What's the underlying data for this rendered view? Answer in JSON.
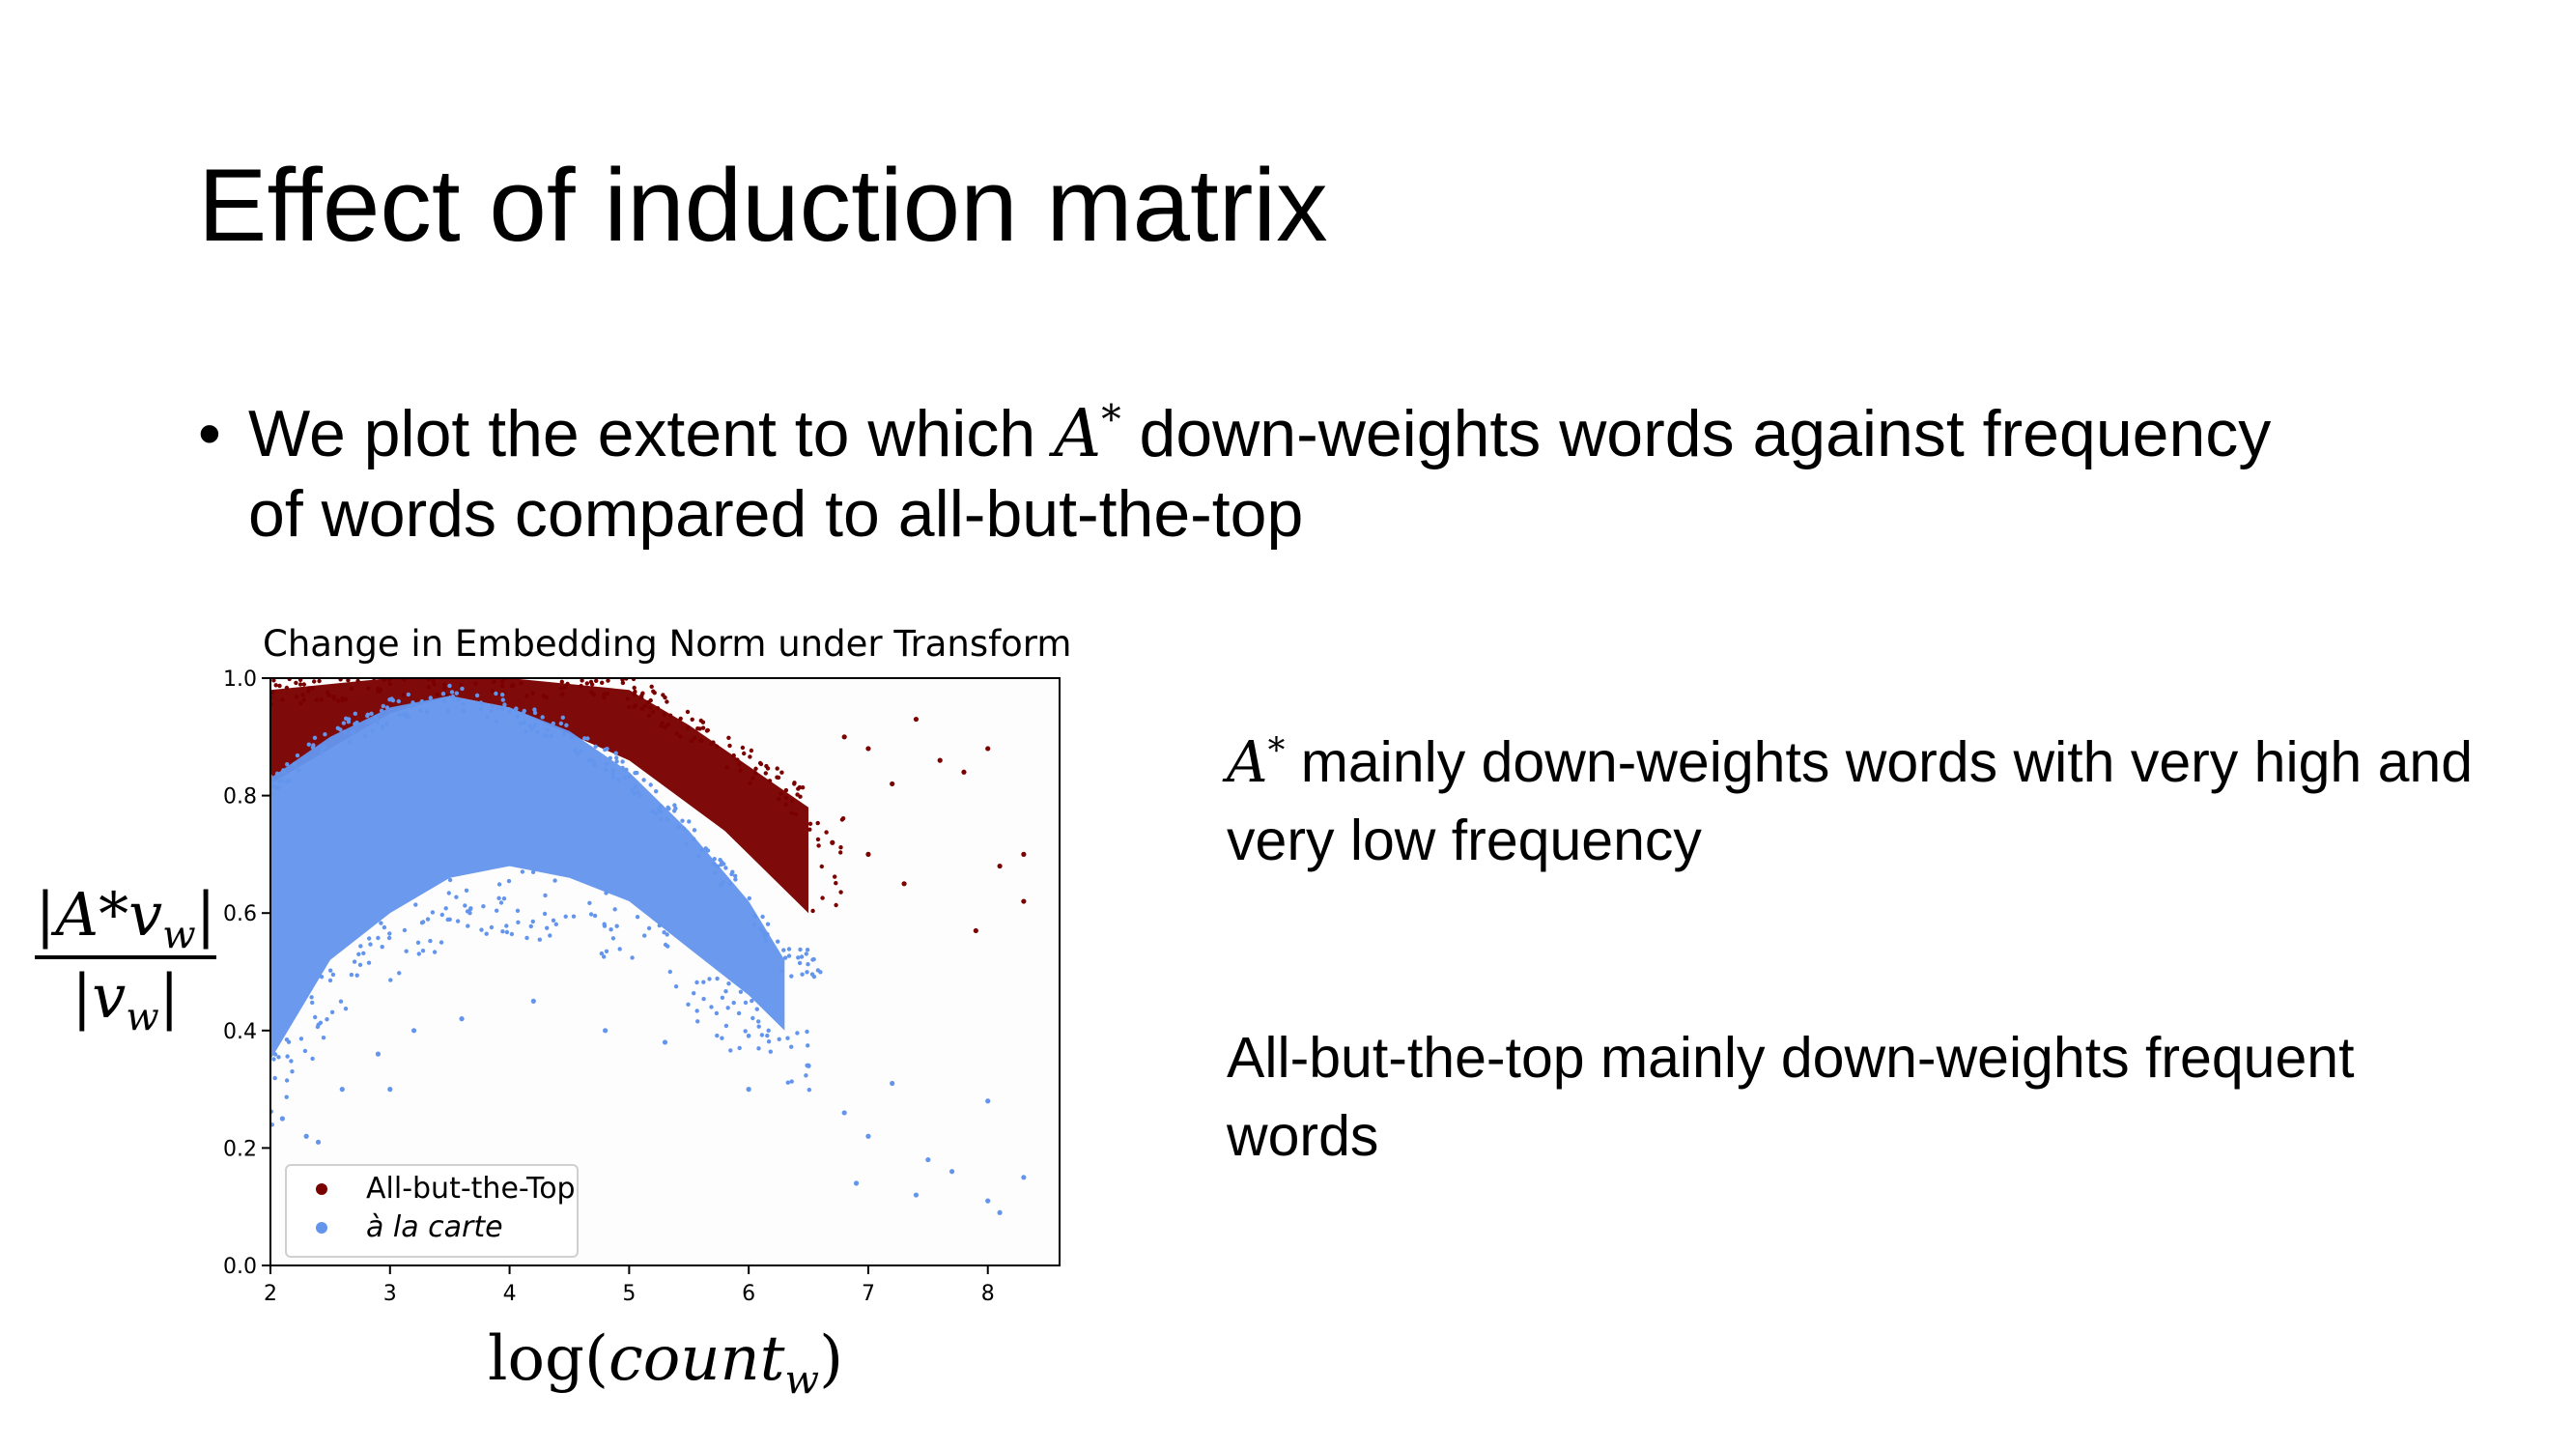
{
  "slide": {
    "title": "Effect of induction matrix",
    "bullet": {
      "prefix": "We plot the extent to which",
      "symbol": "A",
      "symbol_sup": "*",
      "suffix": "down-weights words against frequency of words compared to all-but-the-top"
    },
    "note1": {
      "symbol": "A",
      "symbol_sup": "*",
      "text": "mainly down-weights words with very high and very low frequency"
    },
    "note2": {
      "text": "All-but-the-top mainly down-weights frequent words"
    },
    "y_label": {
      "numerator": "|A*v",
      "numerator_sub": "w",
      "numerator_end": "|",
      "denominator": "|v",
      "denominator_sub": "w",
      "denominator_end": "|"
    },
    "x_label": {
      "prefix": "log(",
      "main": "count",
      "sub": "w",
      "suffix": ")"
    }
  },
  "chart_data": {
    "type": "scatter",
    "title": "Change in Embedding Norm under Transform",
    "xlim": [
      2,
      8.6
    ],
    "ylim": [
      0.0,
      1.0
    ],
    "x_ticks": [
      "2",
      "3",
      "4",
      "5",
      "6",
      "7",
      "8"
    ],
    "y_ticks": [
      "0.0",
      "0.2",
      "0.4",
      "0.6",
      "0.8",
      "1.0"
    ],
    "legend_position": "bottom-left",
    "series": [
      {
        "name": "All-but-the-Top",
        "color": "#7a0000",
        "upper_envelope": [
          [
            2.0,
            0.98
          ],
          [
            3.0,
            1.0
          ],
          [
            4.0,
            1.0
          ],
          [
            5.0,
            0.98
          ],
          [
            5.5,
            0.92
          ],
          [
            6.0,
            0.85
          ],
          [
            6.5,
            0.78
          ]
        ],
        "lower_envelope": [
          [
            2.0,
            0.82
          ],
          [
            3.0,
            0.94
          ],
          [
            3.5,
            0.97
          ],
          [
            4.0,
            0.95
          ],
          [
            5.0,
            0.86
          ],
          [
            5.8,
            0.74
          ],
          [
            6.5,
            0.6
          ]
        ],
        "sparse_points": [
          [
            6.8,
            0.9
          ],
          [
            7.0,
            0.88
          ],
          [
            7.2,
            0.82
          ],
          [
            7.4,
            0.93
          ],
          [
            7.6,
            0.86
          ],
          [
            7.8,
            0.84
          ],
          [
            8.0,
            0.88
          ],
          [
            8.3,
            0.7
          ],
          [
            8.3,
            0.62
          ],
          [
            7.0,
            0.7
          ],
          [
            7.3,
            0.65
          ],
          [
            6.7,
            0.72
          ],
          [
            7.9,
            0.57
          ],
          [
            8.1,
            0.68
          ]
        ]
      },
      {
        "name": "à la carte",
        "color": "#6495ed",
        "upper_envelope": [
          [
            2.0,
            0.83
          ],
          [
            2.5,
            0.9
          ],
          [
            3.0,
            0.95
          ],
          [
            3.5,
            0.97
          ],
          [
            4.0,
            0.95
          ],
          [
            4.5,
            0.91
          ],
          [
            5.0,
            0.84
          ],
          [
            5.5,
            0.74
          ],
          [
            6.0,
            0.62
          ],
          [
            6.3,
            0.52
          ]
        ],
        "lower_envelope": [
          [
            2.0,
            0.35
          ],
          [
            2.5,
            0.52
          ],
          [
            3.0,
            0.6
          ],
          [
            3.5,
            0.66
          ],
          [
            4.0,
            0.68
          ],
          [
            4.5,
            0.66
          ],
          [
            5.0,
            0.62
          ],
          [
            5.5,
            0.54
          ],
          [
            6.0,
            0.46
          ],
          [
            6.3,
            0.4
          ]
        ],
        "sparse_points": [
          [
            2.1,
            0.25
          ],
          [
            2.3,
            0.22
          ],
          [
            2.6,
            0.3
          ],
          [
            2.9,
            0.36
          ],
          [
            3.2,
            0.4
          ],
          [
            3.6,
            0.42
          ],
          [
            4.2,
            0.45
          ],
          [
            4.8,
            0.4
          ],
          [
            5.3,
            0.38
          ],
          [
            6.0,
            0.3
          ],
          [
            6.5,
            0.34
          ],
          [
            6.8,
            0.26
          ],
          [
            7.0,
            0.22
          ],
          [
            7.2,
            0.31
          ],
          [
            7.5,
            0.18
          ],
          [
            7.7,
            0.16
          ],
          [
            8.0,
            0.28
          ],
          [
            8.0,
            0.11
          ],
          [
            8.3,
            0.15
          ],
          [
            7.4,
            0.12
          ],
          [
            6.9,
            0.14
          ],
          [
            8.1,
            0.09
          ],
          [
            2.4,
            0.21
          ],
          [
            3.0,
            0.3
          ]
        ]
      }
    ]
  }
}
